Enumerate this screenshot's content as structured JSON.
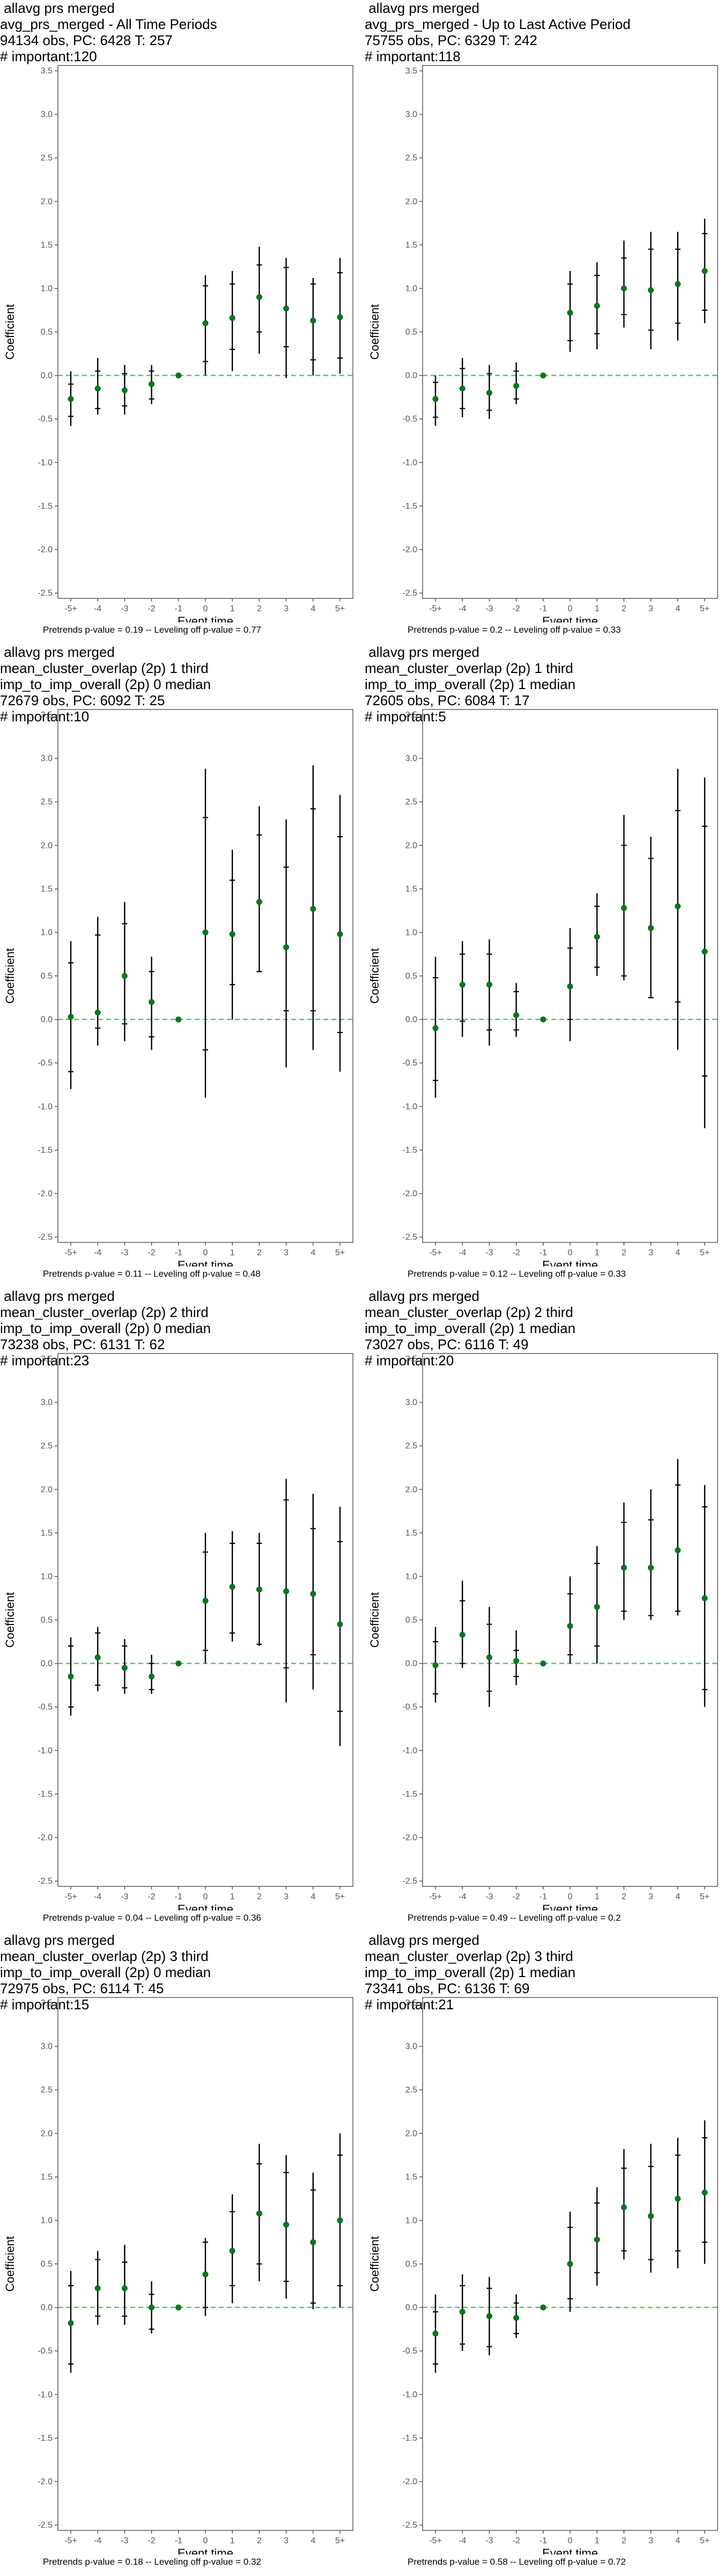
{
  "panels": [
    {
      "title_lines": [
        " allavg prs merged",
        "avg_prs_merged - All Time Periods",
        "94134 obs, PC: 6428 T: 257",
        "# important:120"
      ],
      "footer": "Pretrends p-value = 0.19 -- Leveling off p-value = 0.77",
      "chart_data": {
        "type": "scatter",
        "xlabel": "Event time",
        "ylabel": "Coefficient",
        "ylim": [
          -2.5,
          3.5
        ],
        "yticks": [
          "-2.5",
          "-2.0",
          "-1.5",
          "-1.0",
          "-0.5",
          "0.0",
          "0.5",
          "1.0",
          "1.5",
          "2.0",
          "2.5",
          "3.0",
          "3.5"
        ],
        "categories": [
          "-5+",
          "-4",
          "-3",
          "-2",
          "-1",
          "0",
          "1",
          "2",
          "3",
          "4",
          "5+"
        ],
        "estimate": [
          -0.27,
          -0.15,
          -0.17,
          -0.1,
          0.0,
          0.6,
          0.66,
          0.9,
          0.77,
          0.63,
          0.67
        ],
        "ci_outer_low": [
          -0.58,
          -0.45,
          -0.45,
          -0.33,
          0.0,
          0.0,
          0.05,
          0.25,
          -0.03,
          0.0,
          0.02
        ],
        "ci_outer_high": [
          0.05,
          0.2,
          0.12,
          0.12,
          0.0,
          1.15,
          1.2,
          1.48,
          1.35,
          1.12,
          1.35
        ],
        "ci_inner_low": [
          -0.47,
          -0.38,
          -0.35,
          -0.27,
          0.0,
          0.16,
          0.3,
          0.5,
          0.33,
          0.18,
          0.2
        ],
        "ci_inner_high": [
          -0.1,
          0.05,
          0.02,
          0.05,
          0.0,
          1.03,
          1.05,
          1.27,
          1.24,
          1.05,
          1.18
        ],
        "reference_line": 0,
        "grid": false
      }
    },
    {
      "title_lines": [
        " allavg prs merged",
        "avg_prs_merged - Up to Last Active Period",
        "75755 obs, PC: 6329 T: 242",
        "# important:118"
      ],
      "footer": "Pretrends p-value = 0.2 -- Leveling off p-value = 0.33",
      "chart_data": {
        "type": "scatter",
        "xlabel": "Event time",
        "ylabel": "Coefficient",
        "ylim": [
          -2.5,
          3.5
        ],
        "yticks": [
          "-2.5",
          "-2.0",
          "-1.5",
          "-1.0",
          "-0.5",
          "0.0",
          "0.5",
          "1.0",
          "1.5",
          "2.0",
          "2.5",
          "3.0",
          "3.5"
        ],
        "categories": [
          "-5+",
          "-4",
          "-3",
          "-2",
          "-1",
          "0",
          "1",
          "2",
          "3",
          "4",
          "5+"
        ],
        "estimate": [
          -0.27,
          -0.15,
          -0.2,
          -0.12,
          0.0,
          0.72,
          0.8,
          1.0,
          0.98,
          1.05,
          1.2
        ],
        "ci_outer_low": [
          -0.58,
          -0.48,
          -0.5,
          -0.33,
          0.0,
          0.27,
          0.3,
          0.55,
          0.3,
          0.4,
          0.6
        ],
        "ci_outer_high": [
          0.0,
          0.2,
          0.12,
          0.15,
          0.0,
          1.2,
          1.3,
          1.55,
          1.65,
          1.65,
          1.8
        ],
        "ci_inner_low": [
          -0.48,
          -0.38,
          -0.4,
          -0.27,
          0.0,
          0.4,
          0.48,
          0.7,
          0.52,
          0.6,
          0.75
        ],
        "ci_inner_high": [
          -0.08,
          0.08,
          0.02,
          0.05,
          0.0,
          1.05,
          1.15,
          1.35,
          1.45,
          1.45,
          1.63
        ],
        "reference_line": 0,
        "grid": false
      }
    },
    {
      "title_lines": [
        " allavg prs merged",
        "mean_cluster_overlap (2p) 1 third",
        "imp_to_imp_overall (2p) 0 median",
        "72679 obs, PC: 6092 T: 25",
        "# important:10"
      ],
      "footer": "Pretrends p-value = 0.11 -- Leveling off p-value = 0.48",
      "chart_data": {
        "type": "scatter",
        "xlabel": "Event time",
        "ylabel": "Coefficient",
        "ylim": [
          -2.5,
          3.5
        ],
        "yticks": [
          "-2.5",
          "-2.0",
          "-1.5",
          "-1.0",
          "-0.5",
          "0.0",
          "0.5",
          "1.0",
          "1.5",
          "2.0",
          "2.5",
          "3.0",
          "3.5"
        ],
        "categories": [
          "-5+",
          "-4",
          "-3",
          "-2",
          "-1",
          "0",
          "1",
          "2",
          "3",
          "4",
          "5+"
        ],
        "estimate": [
          0.03,
          0.08,
          0.5,
          0.2,
          0.0,
          1.0,
          0.98,
          1.35,
          0.83,
          1.27,
          0.98
        ],
        "ci_outer_low": [
          -0.8,
          -0.3,
          -0.25,
          -0.35,
          0.0,
          -0.9,
          0.0,
          0.55,
          -0.55,
          -0.35,
          -0.6
        ],
        "ci_outer_high": [
          0.9,
          1.18,
          1.35,
          0.72,
          0.0,
          2.88,
          1.95,
          2.45,
          2.3,
          2.92,
          2.58
        ],
        "ci_inner_low": [
          -0.6,
          -0.1,
          -0.05,
          -0.2,
          0.0,
          -0.35,
          0.4,
          0.55,
          0.1,
          0.1,
          -0.15
        ],
        "ci_inner_high": [
          0.65,
          0.97,
          1.1,
          0.55,
          0.0,
          2.32,
          1.6,
          2.12,
          1.75,
          2.42,
          2.1
        ],
        "reference_line": 0,
        "grid": false
      }
    },
    {
      "title_lines": [
        " allavg prs merged",
        "mean_cluster_overlap (2p) 1 third",
        "imp_to_imp_overall (2p) 1 median",
        "72605 obs, PC: 6084 T: 17",
        "# important:5"
      ],
      "footer": "Pretrends p-value = 0.12 -- Leveling off p-value = 0.33",
      "chart_data": {
        "type": "scatter",
        "xlabel": "Event time",
        "ylabel": "Coefficient",
        "ylim": [
          -2.5,
          3.5
        ],
        "yticks": [
          "-2.5",
          "-2.0",
          "-1.5",
          "-1.0",
          "-0.5",
          "0.0",
          "0.5",
          "1.0",
          "1.5",
          "2.0",
          "2.5",
          "3.0",
          "3.5"
        ],
        "categories": [
          "-5+",
          "-4",
          "-3",
          "-2",
          "-1",
          "0",
          "1",
          "2",
          "3",
          "4",
          "5+"
        ],
        "estimate": [
          -0.1,
          0.4,
          0.4,
          0.05,
          0.0,
          0.38,
          0.95,
          1.28,
          1.05,
          1.3,
          0.78
        ],
        "ci_outer_low": [
          -0.9,
          -0.2,
          -0.3,
          -0.2,
          0.0,
          -0.25,
          0.5,
          0.45,
          0.25,
          -0.35,
          -1.25
        ],
        "ci_outer_high": [
          0.72,
          0.9,
          0.92,
          0.42,
          0.0,
          1.05,
          1.45,
          2.35,
          2.1,
          2.88,
          2.78
        ],
        "ci_inner_low": [
          -0.7,
          -0.02,
          -0.12,
          -0.12,
          0.0,
          0.0,
          0.6,
          0.5,
          0.25,
          0.2,
          -0.65
        ],
        "ci_inner_high": [
          0.48,
          0.75,
          0.75,
          0.32,
          0.0,
          0.82,
          1.3,
          2.0,
          1.85,
          2.4,
          2.22
        ],
        "reference_line": 0,
        "grid": false
      }
    },
    {
      "title_lines": [
        " allavg prs merged",
        "mean_cluster_overlap (2p) 2 third",
        "imp_to_imp_overall (2p) 0 median",
        "73238 obs, PC: 6131 T: 62",
        "# important:23"
      ],
      "footer": "Pretrends p-value = 0.04 -- Leveling off p-value = 0.36",
      "chart_data": {
        "type": "scatter",
        "xlabel": "Event time",
        "ylabel": "Coefficient",
        "ylim": [
          -2.5,
          3.5
        ],
        "yticks": [
          "-2.5",
          "-2.0",
          "-1.5",
          "-1.0",
          "-0.5",
          "0.0",
          "0.5",
          "1.0",
          "1.5",
          "2.0",
          "2.5",
          "3.0",
          "3.5"
        ],
        "categories": [
          "-5+",
          "-4",
          "-3",
          "-2",
          "-1",
          "0",
          "1",
          "2",
          "3",
          "4",
          "5+"
        ],
        "estimate": [
          -0.15,
          0.07,
          -0.05,
          -0.15,
          0.0,
          0.72,
          0.88,
          0.85,
          0.83,
          0.8,
          0.45
        ],
        "ci_outer_low": [
          -0.6,
          -0.32,
          -0.35,
          -0.35,
          0.0,
          0.0,
          0.25,
          0.2,
          -0.45,
          -0.3,
          -0.95
        ],
        "ci_outer_high": [
          0.3,
          0.42,
          0.28,
          0.1,
          0.0,
          1.5,
          1.52,
          1.5,
          2.12,
          1.95,
          1.8
        ],
        "ci_inner_low": [
          -0.5,
          -0.25,
          -0.28,
          -0.3,
          0.0,
          0.15,
          0.35,
          0.22,
          -0.05,
          0.1,
          -0.55
        ],
        "ci_inner_high": [
          0.2,
          0.35,
          0.2,
          0.0,
          0.0,
          1.28,
          1.38,
          1.38,
          1.88,
          1.55,
          1.4
        ],
        "reference_line": 0,
        "grid": false
      }
    },
    {
      "title_lines": [
        " allavg prs merged",
        "mean_cluster_overlap (2p) 2 third",
        "imp_to_imp_overall (2p) 1 median",
        "73027 obs, PC: 6116 T: 49",
        "# important:20"
      ],
      "footer": "Pretrends p-value = 0.49 -- Leveling off p-value = 0.2",
      "chart_data": {
        "type": "scatter",
        "xlabel": "Event time",
        "ylabel": "Coefficient",
        "ylim": [
          -2.5,
          3.5
        ],
        "yticks": [
          "-2.5",
          "-2.0",
          "-1.5",
          "-1.0",
          "-0.5",
          "0.0",
          "0.5",
          "1.0",
          "1.5",
          "2.0",
          "2.5",
          "3.0",
          "3.5"
        ],
        "categories": [
          "-5+",
          "-4",
          "-3",
          "-2",
          "-1",
          "0",
          "1",
          "2",
          "3",
          "4",
          "5+"
        ],
        "estimate": [
          -0.02,
          0.33,
          0.07,
          0.03,
          0.0,
          0.43,
          0.65,
          1.1,
          1.1,
          1.3,
          0.75
        ],
        "ci_outer_low": [
          -0.45,
          -0.05,
          -0.5,
          -0.25,
          0.0,
          0.0,
          0.0,
          0.5,
          0.5,
          0.55,
          -0.5
        ],
        "ci_outer_high": [
          0.42,
          0.95,
          0.65,
          0.38,
          0.0,
          1.0,
          1.35,
          1.85,
          2.0,
          2.35,
          2.05
        ],
        "ci_inner_low": [
          -0.35,
          0.0,
          -0.32,
          -0.15,
          0.0,
          0.1,
          0.2,
          0.6,
          0.55,
          0.6,
          -0.3
        ],
        "ci_inner_high": [
          0.25,
          0.72,
          0.45,
          0.15,
          0.0,
          0.8,
          1.15,
          1.62,
          1.65,
          2.05,
          1.8
        ],
        "reference_line": 0,
        "grid": false
      }
    },
    {
      "title_lines": [
        " allavg prs merged",
        "mean_cluster_overlap (2p) 3 third",
        "imp_to_imp_overall (2p) 0 median",
        "72975 obs, PC: 6114 T: 45",
        "# important:15"
      ],
      "footer": "Pretrends p-value = 0.18 -- Leveling off p-value = 0.32",
      "chart_data": {
        "type": "scatter",
        "xlabel": "Event time",
        "ylabel": "Coefficient",
        "ylim": [
          -2.5,
          3.5
        ],
        "yticks": [
          "-2.5",
          "-2.0",
          "-1.5",
          "-1.0",
          "-0.5",
          "0.0",
          "0.5",
          "1.0",
          "1.5",
          "2.0",
          "2.5",
          "3.0",
          "3.5"
        ],
        "categories": [
          "-5+",
          "-4",
          "-3",
          "-2",
          "-1",
          "0",
          "1",
          "2",
          "3",
          "4",
          "5+"
        ],
        "estimate": [
          -0.18,
          0.22,
          0.22,
          0.0,
          0.0,
          0.38,
          0.65,
          1.08,
          0.95,
          0.75,
          1.0
        ],
        "ci_outer_low": [
          -0.75,
          -0.2,
          -0.2,
          -0.3,
          0.0,
          -0.1,
          0.05,
          0.3,
          0.1,
          -0.02,
          0.0
        ],
        "ci_outer_high": [
          0.42,
          0.65,
          0.72,
          0.3,
          0.0,
          0.8,
          1.3,
          1.88,
          1.75,
          1.55,
          2.0
        ],
        "ci_inner_low": [
          -0.65,
          -0.1,
          -0.1,
          -0.25,
          0.0,
          0.0,
          0.25,
          0.5,
          0.3,
          0.05,
          0.25
        ],
        "ci_inner_high": [
          0.25,
          0.55,
          0.52,
          0.15,
          0.0,
          0.75,
          1.1,
          1.65,
          1.55,
          1.35,
          1.75
        ],
        "reference_line": 0,
        "grid": false
      }
    },
    {
      "title_lines": [
        " allavg prs merged",
        "mean_cluster_overlap (2p) 3 third",
        "imp_to_imp_overall (2p) 1 median",
        "73341 obs, PC: 6136 T: 69",
        "# important:21"
      ],
      "footer": "Pretrends p-value = 0.58 -- Leveling off p-value = 0.72",
      "chart_data": {
        "type": "scatter",
        "xlabel": "Event time",
        "ylabel": "Coefficient",
        "ylim": [
          -2.5,
          3.5
        ],
        "yticks": [
          "-2.5",
          "-2.0",
          "-1.5",
          "-1.0",
          "-0.5",
          "0.0",
          "0.5",
          "1.0",
          "1.5",
          "2.0",
          "2.5",
          "3.0",
          "3.5"
        ],
        "categories": [
          "-5+",
          "-4",
          "-3",
          "-2",
          "-1",
          "0",
          "1",
          "2",
          "3",
          "4",
          "5+"
        ],
        "estimate": [
          -0.3,
          -0.05,
          -0.1,
          -0.12,
          0.0,
          0.5,
          0.78,
          1.15,
          1.05,
          1.25,
          1.32
        ],
        "ci_outer_low": [
          -0.75,
          -0.5,
          -0.55,
          -0.35,
          0.0,
          -0.05,
          0.25,
          0.55,
          0.4,
          0.45,
          0.5
        ],
        "ci_outer_high": [
          0.15,
          0.38,
          0.35,
          0.15,
          0.0,
          1.1,
          1.38,
          1.82,
          1.88,
          1.95,
          2.15
        ],
        "ci_inner_low": [
          -0.65,
          -0.42,
          -0.45,
          -0.3,
          0.0,
          0.1,
          0.4,
          0.65,
          0.55,
          0.65,
          0.75
        ],
        "ci_inner_high": [
          -0.05,
          0.25,
          0.22,
          0.05,
          0.0,
          0.92,
          1.2,
          1.6,
          1.62,
          1.75,
          1.95
        ],
        "reference_line": 0,
        "grid": false
      }
    }
  ]
}
